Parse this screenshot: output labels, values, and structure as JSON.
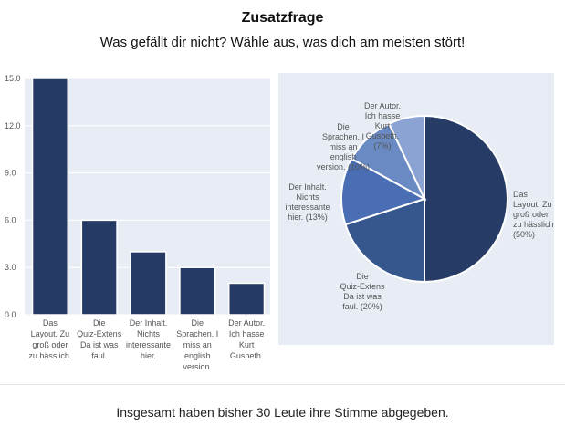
{
  "title": "Zusatzfrage",
  "subtitle": "Was gefällt dir nicht? Wähle aus, was dich am meisten stört!",
  "footer": "Insgesamt haben bisher 30 Leute ihre Stimme abgegeben.",
  "chart_data": [
    {
      "type": "bar",
      "categories": [
        [
          "Das",
          "Layout. Zu",
          "groß oder",
          "zu hässlich."
        ],
        [
          "Die",
          "Quiz-Extens",
          "Da ist was",
          "faul."
        ],
        [
          "Der Inhalt.",
          "Nichts",
          "interessante",
          "hier."
        ],
        [
          "Die",
          "Sprachen. I",
          "miss an",
          "english",
          "version."
        ],
        [
          "Der Autor.",
          "Ich hasse",
          "Kurt",
          "Gusbeth."
        ]
      ],
      "values": [
        15,
        6,
        4,
        3,
        2
      ],
      "ylim": [
        0,
        15
      ],
      "yticks": [
        "0.0",
        "3.0",
        "6.0",
        "9.0",
        "12.0",
        "15.0"
      ],
      "color": "#253a64",
      "grid": true
    },
    {
      "type": "pie",
      "slices": [
        {
          "label": [
            "Das",
            "Layout. Zu",
            "groß oder",
            "zu hässlich.",
            "(50%)"
          ],
          "value": 50,
          "color": "#263c67"
        },
        {
          "label": [
            "Die",
            "Quiz-Extens",
            "Da ist was",
            "faul. (20%)"
          ],
          "value": 20,
          "color": "#36568e"
        },
        {
          "label": [
            "Der Inhalt.",
            "Nichts",
            "interessante",
            "hier. (13%)"
          ],
          "value": 13,
          "color": "#4a6eb3"
        },
        {
          "label": [
            "Die",
            "Sprachen. I",
            "miss an",
            "english",
            "version. (10%)"
          ],
          "value": 10,
          "color": "#6a8ac4"
        },
        {
          "label": [
            "Der Autor.",
            "Ich hasse",
            "Kurt",
            "Gusbeth.",
            "(7%)"
          ],
          "value": 7,
          "color": "#8aa3d2"
        }
      ],
      "background": "#e8edf5"
    }
  ]
}
